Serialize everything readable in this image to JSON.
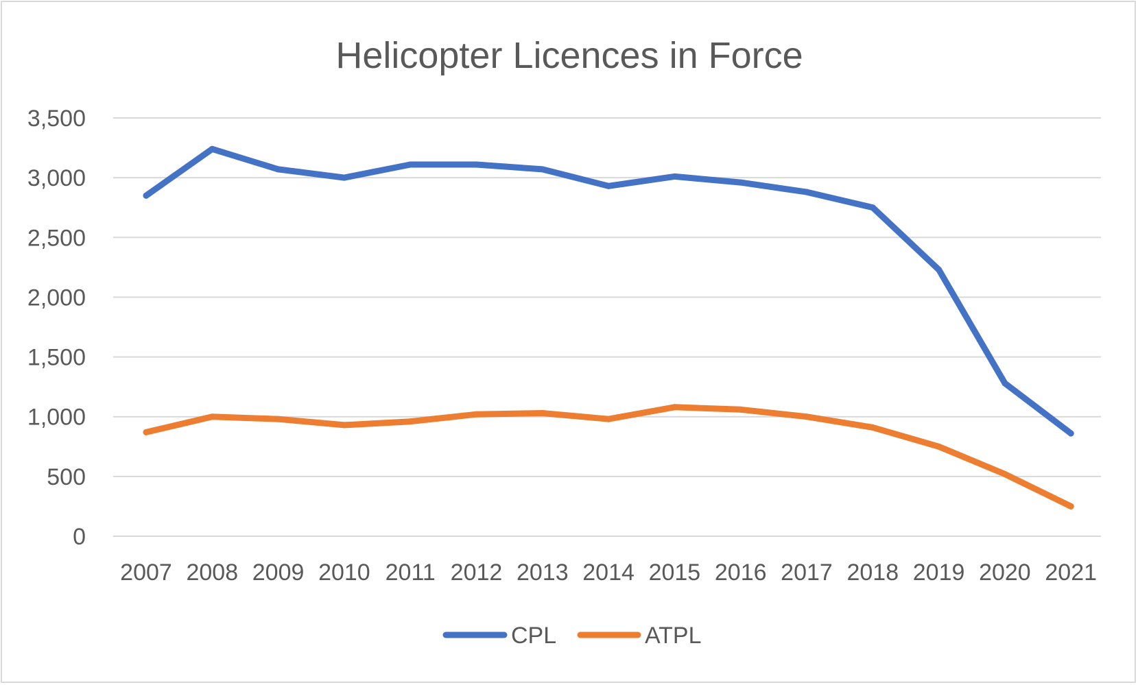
{
  "chart_data": {
    "type": "line",
    "title": "Helicopter Licences in Force",
    "xlabel": "",
    "ylabel": "",
    "categories": [
      "2007",
      "2008",
      "2009",
      "2010",
      "2011",
      "2012",
      "2013",
      "2014",
      "2015",
      "2016",
      "2017",
      "2018",
      "2019",
      "2020",
      "2021"
    ],
    "y_ticks": [
      "0",
      "500",
      "1,000",
      "1,500",
      "2,000",
      "2,500",
      "3,000",
      "3,500"
    ],
    "ylim": [
      0,
      3500
    ],
    "grid": true,
    "legend_position": "bottom",
    "series": [
      {
        "name": "CPL",
        "color": "#4472C4",
        "values": [
          2850,
          3240,
          3070,
          3000,
          3110,
          3110,
          3070,
          2930,
          3010,
          2960,
          2880,
          2750,
          2230,
          1280,
          860
        ]
      },
      {
        "name": "ATPL",
        "color": "#ED7D31",
        "values": [
          870,
          1000,
          980,
          930,
          960,
          1020,
          1030,
          980,
          1080,
          1060,
          1000,
          910,
          750,
          520,
          250
        ]
      }
    ]
  }
}
